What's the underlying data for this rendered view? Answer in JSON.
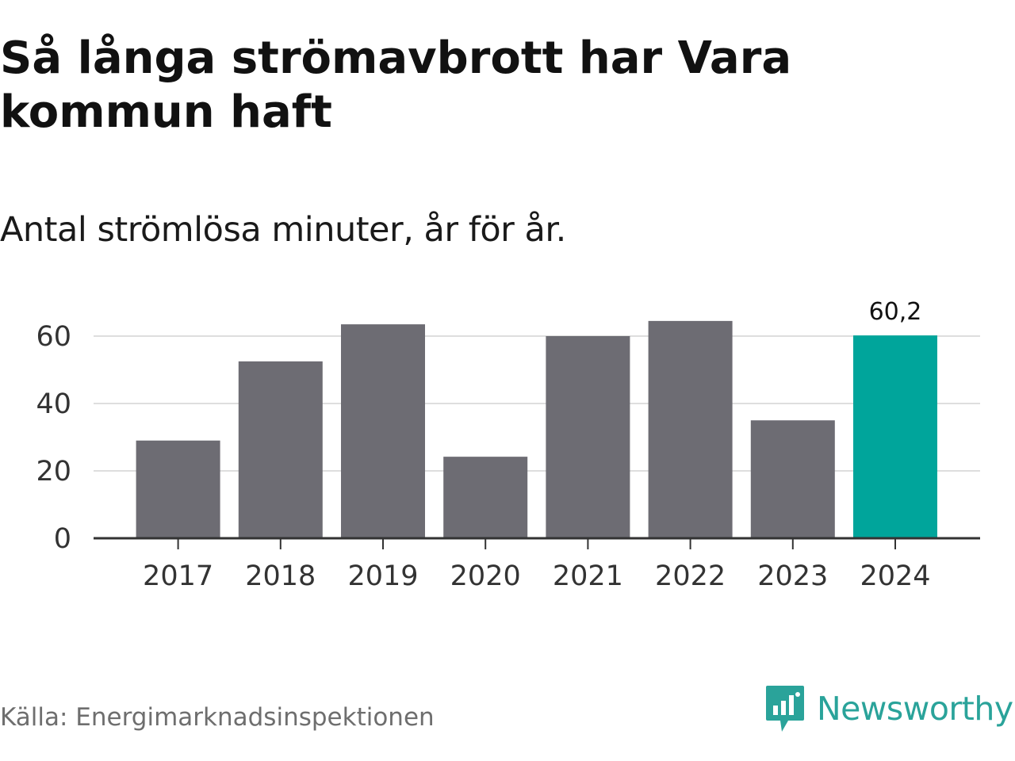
{
  "title": "Så långa strömavbrott har Vara kommun haft",
  "subtitle": "Antal strömlösa minuter, år för år.",
  "source": "Källa: Energimarknadsinspektionen",
  "brand": {
    "name": "Newsworthy",
    "icon": "bar-chart-speech-bubble-icon",
    "color": "#2aa39a"
  },
  "chart_data": {
    "type": "bar",
    "categories": [
      "2017",
      "2018",
      "2019",
      "2020",
      "2021",
      "2022",
      "2023",
      "2024"
    ],
    "values": [
      29,
      52.5,
      63.5,
      24.2,
      60,
      64.5,
      35,
      60.2
    ],
    "ylim": [
      0,
      68
    ],
    "yticks": [
      0,
      20,
      40,
      60
    ],
    "grid": true,
    "highlight_index": 7,
    "highlight_label": "60,2",
    "colors": {
      "bar": "#6d6c73",
      "highlight": "#00a59b",
      "grid": "#dedede",
      "axis": "#333333"
    }
  }
}
